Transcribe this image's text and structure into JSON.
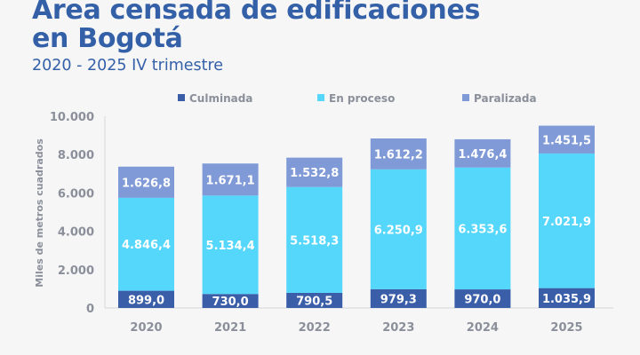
{
  "header": {
    "title": "Area censada de edificaciones en Bogotá",
    "title_line1": "Area censada de edificaciones",
    "title_line2": "en Bogotá",
    "subtitle": "2020 - 2025 IV trimestre"
  },
  "chart_data": {
    "type": "bar",
    "stacked": true,
    "categories": [
      "2020",
      "2021",
      "2022",
      "2023",
      "2024",
      "2025"
    ],
    "series": [
      {
        "name": "Culminada",
        "color": "#3a5ea8",
        "values": [
          899.0,
          730.0,
          790.5,
          979.3,
          970.0,
          1035.9
        ],
        "labels": [
          "899,0",
          "730,0",
          "790,5",
          "979,3",
          "970,0",
          "1.035,9"
        ]
      },
      {
        "name": "En proceso",
        "color": "#55d6fb",
        "values": [
          4846.4,
          5134.4,
          5518.3,
          6250.9,
          6353.6,
          7021.9
        ],
        "labels": [
          "4.846,4",
          "5.134,4",
          "5.518,3",
          "6.250,9",
          "6.353,6",
          "7.021,9"
        ]
      },
      {
        "name": "Paralizada",
        "color": "#7f9ad6",
        "values": [
          1626.8,
          1671.1,
          1532.8,
          1612.2,
          1476.4,
          1451.5
        ],
        "labels": [
          "1.626,8",
          "1.671,1",
          "1.532,8",
          "1.612,2",
          "1.476,4",
          "1.451,5"
        ]
      }
    ],
    "ylabel": "Miles de metros cuadrados",
    "xlabel": "",
    "ylim": [
      0,
      10000
    ],
    "yticks": [
      0,
      2000,
      4000,
      6000,
      8000,
      10000
    ],
    "ytick_labels": [
      "0",
      "2.000",
      "4.000",
      "6.000",
      "8.000",
      "10.000"
    ],
    "grid": false,
    "legend_position": "top"
  }
}
